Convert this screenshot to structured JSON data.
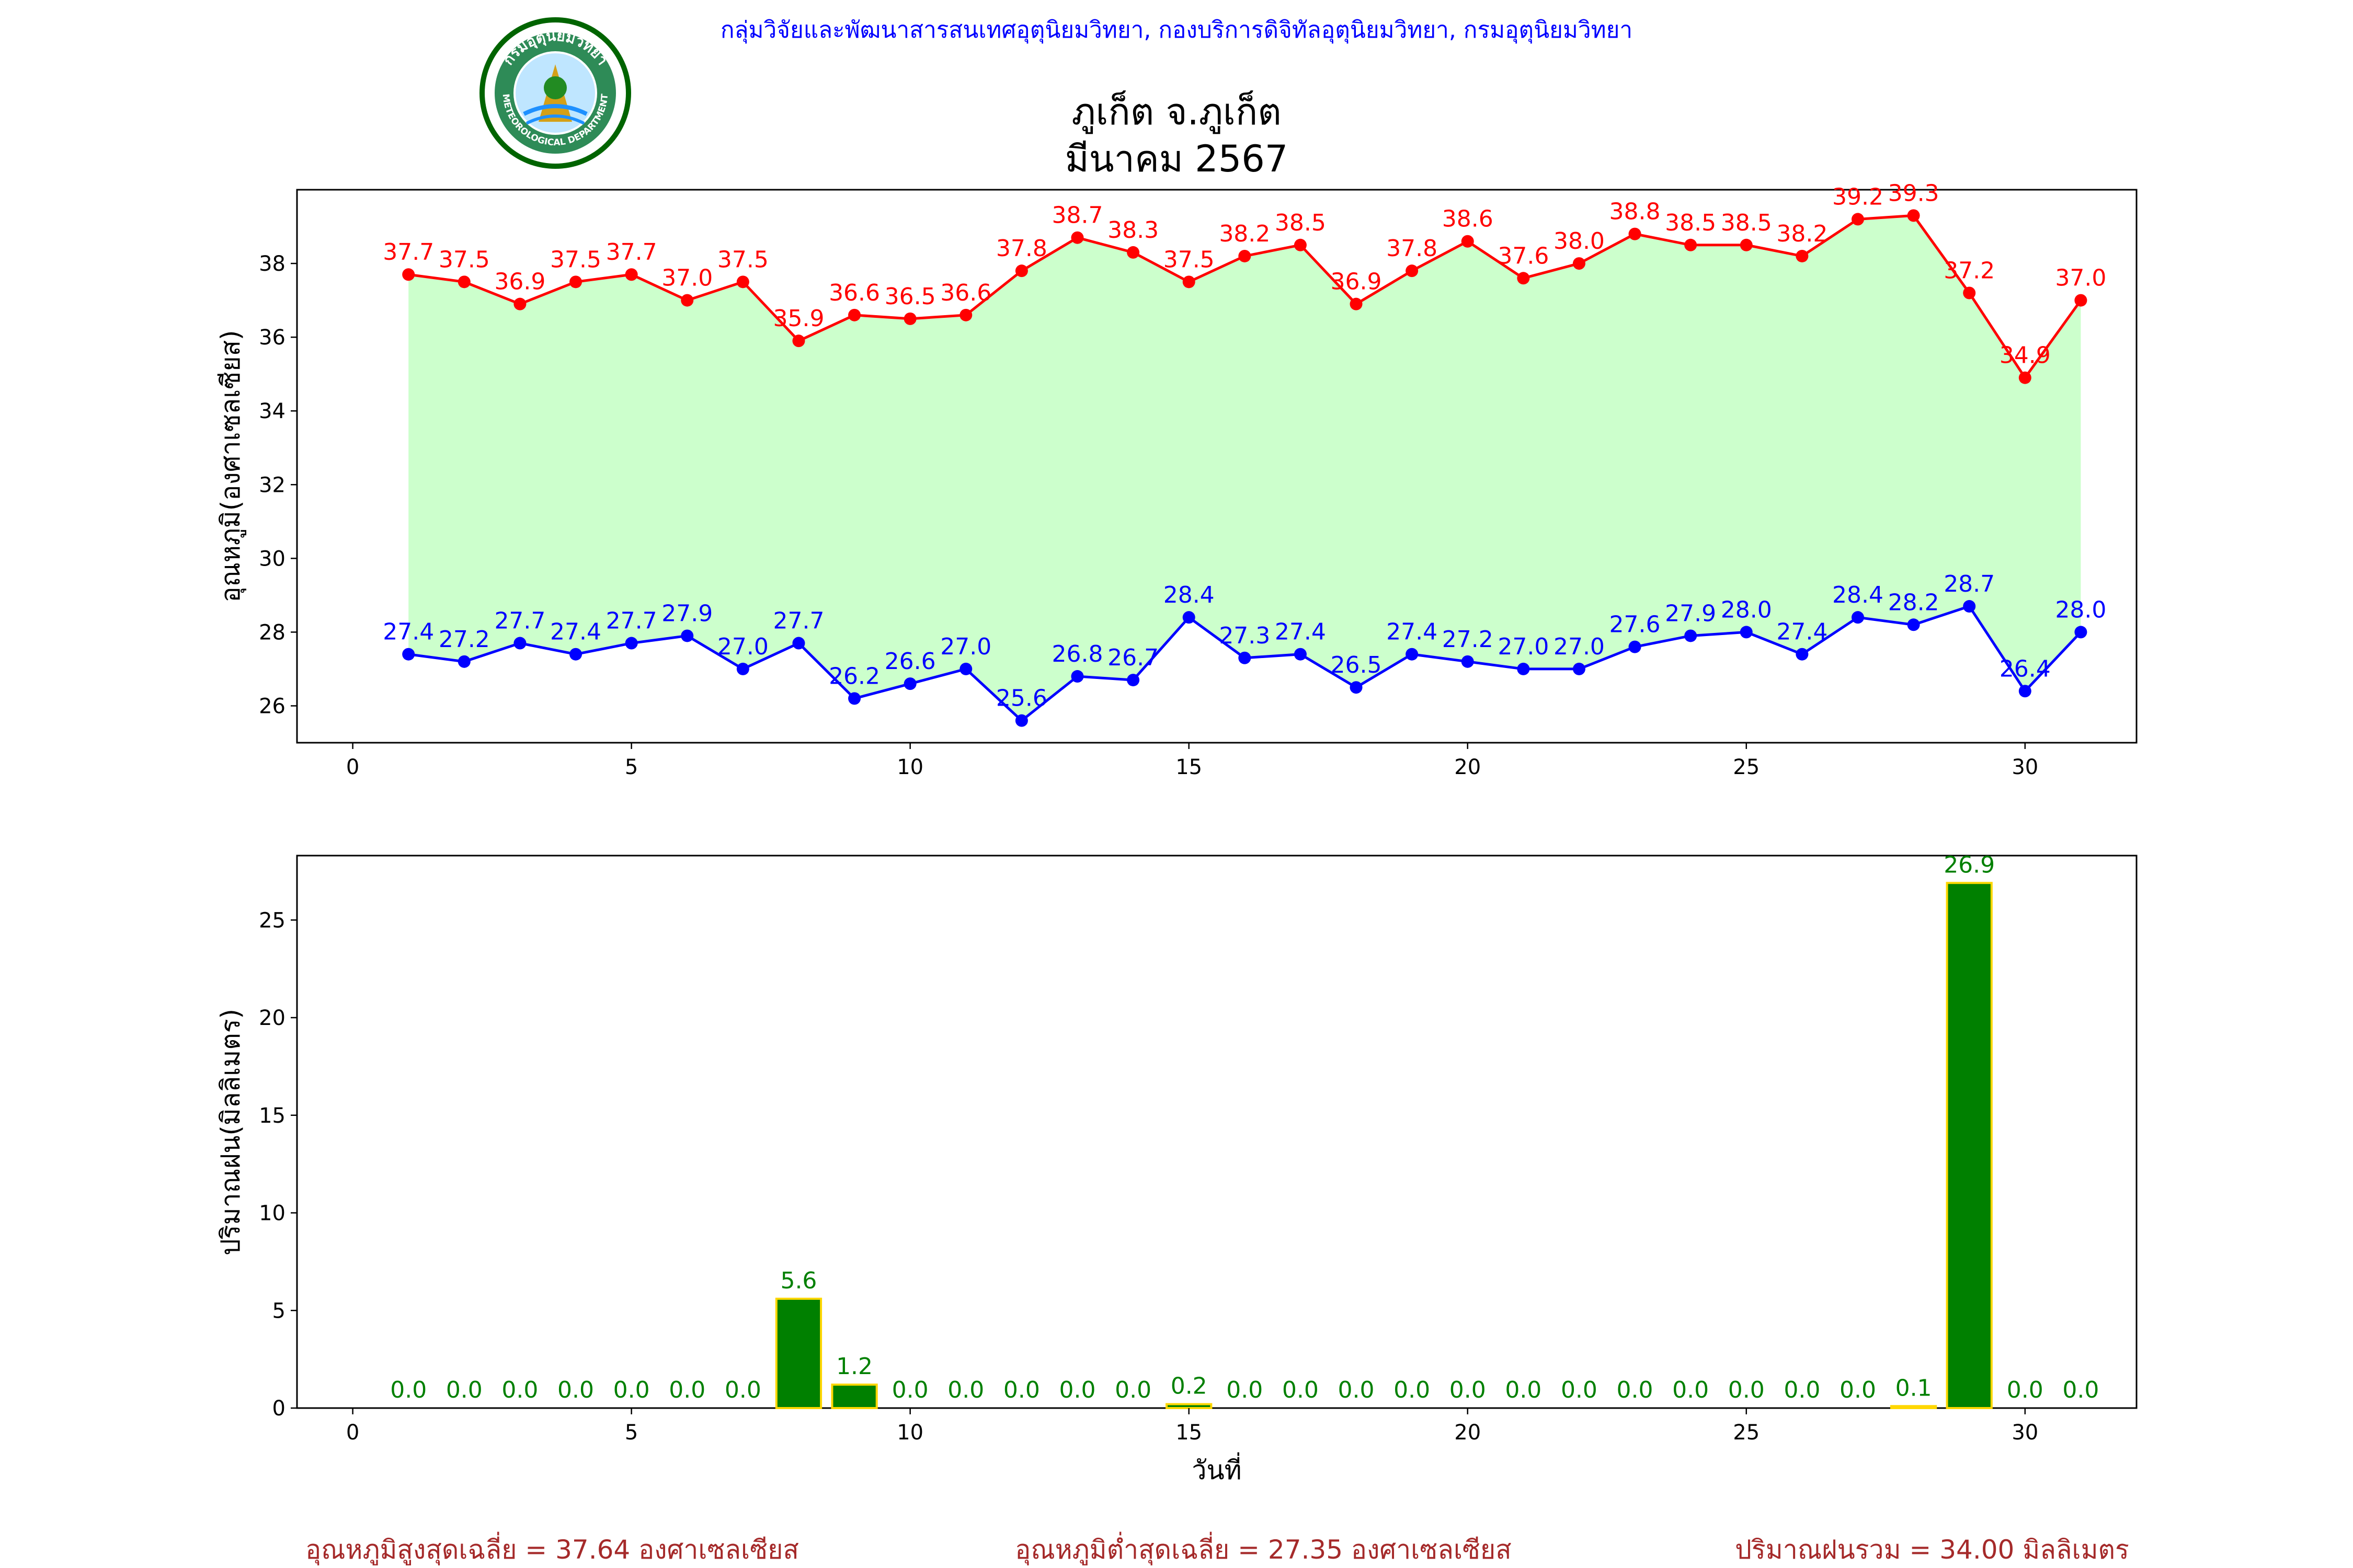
{
  "header": {
    "organization": "กลุ่มวิจัยและพัฒนาสารสนเทศอุตุนิยมวิทยา, กองบริการดิจิทัลอุตุนิยมวิทยา, กรมอุตุนิยมวิทยา",
    "title_line1": "ภูเก็ต จ.ภูเก็ต",
    "title_line2": "มีนาคม 2567",
    "logo": {
      "icon": "meteorological-department-seal-icon",
      "text": "METEOROLOGICAL DEPARTMENT",
      "thai_text": "กรมอุตุนิยมวิทยา"
    }
  },
  "colors": {
    "max": "#ff0000",
    "min": "#0000ff",
    "fill": "#ccffcc",
    "rain_bar": "#008000",
    "rain_edge": "#ffd700",
    "rain_label": "#008000",
    "footer": "#a52a2a",
    "header": "#0000ff"
  },
  "footer": {
    "avg_max": "อุณหภูมิสูงสุดเฉลี่ย = 37.64 องศาเซลเซียส",
    "avg_min": "อุณหภูมิต่ำสุดเฉลี่ย = 27.35 องศาเซลเซียส",
    "total_rain": "ปริมาณฝนรวม = 34.00 มิลลิเมตร"
  },
  "chart_data": [
    {
      "type": "line",
      "ylabel": "อุณหภูมิ(องศาเซลเซียส)",
      "xlim": [
        -1,
        32
      ],
      "ylim": [
        25,
        40
      ],
      "xticks": [
        0,
        5,
        10,
        15,
        20,
        25,
        30
      ],
      "yticks": [
        26,
        28,
        30,
        32,
        34,
        36,
        38
      ],
      "grid": false,
      "x": [
        1,
        2,
        3,
        4,
        5,
        6,
        7,
        8,
        9,
        10,
        11,
        12,
        13,
        14,
        15,
        16,
        17,
        18,
        19,
        20,
        21,
        22,
        23,
        24,
        25,
        26,
        27,
        28,
        29,
        30,
        31
      ],
      "series": [
        {
          "values": [
            37.7,
            37.5,
            36.9,
            37.5,
            37.7,
            37.0,
            37.5,
            35.9,
            36.6,
            36.5,
            36.6,
            37.8,
            38.7,
            38.3,
            37.5,
            38.2,
            38.5,
            36.9,
            37.8,
            38.6,
            37.6,
            38.0,
            38.8,
            38.5,
            38.5,
            38.2,
            39.2,
            39.3,
            37.2,
            34.9,
            37.0
          ],
          "labels": [
            "37.7",
            "37.5",
            "36.9",
            "37.5",
            "37.7",
            "37.0",
            "37.5",
            "35.9",
            "36.6",
            "36.5",
            "36.6",
            "37.8",
            "38.7",
            "38.3",
            "37.5",
            "38.2",
            "38.5",
            "36.9",
            "37.8",
            "38.6",
            "37.6",
            "38.0",
            "38.8",
            "38.5",
            "38.5",
            "38.2",
            "39.2",
            "39.3",
            "37.2",
            "34.9",
            "37.0"
          ]
        },
        {
          "values": [
            27.4,
            27.2,
            27.7,
            27.4,
            27.7,
            27.9,
            27.0,
            27.7,
            26.2,
            26.6,
            27.0,
            25.6,
            26.8,
            26.7,
            28.4,
            27.3,
            27.4,
            26.5,
            27.4,
            27.2,
            27.0,
            27.0,
            27.6,
            27.9,
            28.0,
            27.4,
            28.4,
            28.2,
            28.7,
            26.4,
            28.0
          ],
          "labels": [
            "27.4",
            "27.2",
            "27.7",
            "27.4",
            "27.7",
            "27.9",
            "27.0",
            "27.7",
            "26.2",
            "26.6",
            "27.0",
            "25.6",
            "26.8",
            "26.7",
            "28.4",
            "27.3",
            "27.4",
            "26.5",
            "27.4",
            "27.2",
            "27.0",
            "27.0",
            "27.6",
            "27.9",
            "28.0",
            "27.4",
            "28.4",
            "28.2",
            "28.7",
            "26.4",
            "28.0"
          ]
        }
      ]
    },
    {
      "type": "bar",
      "xlabel": "วันที่",
      "ylabel": "ปริมาณฝน(มิลลิเมตร)",
      "xlim": [
        -1,
        32
      ],
      "ylim": [
        0,
        28.3
      ],
      "xticks": [
        0,
        5,
        10,
        15,
        20,
        25,
        30
      ],
      "yticks": [
        0,
        5,
        10,
        15,
        20,
        25
      ],
      "grid": false,
      "x": [
        1,
        2,
        3,
        4,
        5,
        6,
        7,
        8,
        9,
        10,
        11,
        12,
        13,
        14,
        15,
        16,
        17,
        18,
        19,
        20,
        21,
        22,
        23,
        24,
        25,
        26,
        27,
        28,
        29,
        30,
        31
      ],
      "values": [
        0.0,
        0.0,
        0.0,
        0.0,
        0.0,
        0.0,
        0.0,
        5.6,
        1.2,
        0.0,
        0.0,
        0.0,
        0.0,
        0.0,
        0.2,
        0.0,
        0.0,
        0.0,
        0.0,
        0.0,
        0.0,
        0.0,
        0.0,
        0.0,
        0.0,
        0.0,
        0.0,
        0.1,
        26.9,
        0.0,
        0.0
      ],
      "labels": [
        "0.0",
        "0.0",
        "0.0",
        "0.0",
        "0.0",
        "0.0",
        "0.0",
        "5.6",
        "1.2",
        "0.0",
        "0.0",
        "0.0",
        "0.0",
        "0.0",
        "0.2",
        "0.0",
        "0.0",
        "0.0",
        "0.0",
        "0.0",
        "0.0",
        "0.0",
        "0.0",
        "0.0",
        "0.0",
        "0.0",
        "0.0",
        "0.1",
        "26.9",
        "0.0",
        "0.0"
      ]
    }
  ]
}
